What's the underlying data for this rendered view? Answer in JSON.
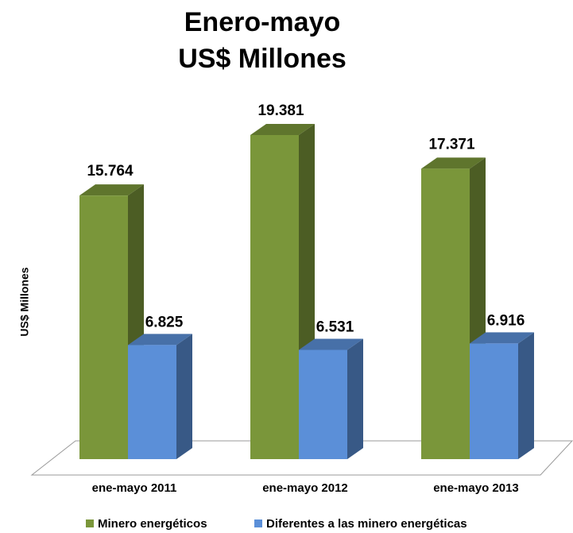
{
  "chart_data": {
    "type": "bar3d",
    "title": "Enero-mayo",
    "subtitle": "US$ Millones",
    "y_label": "US$ Millones",
    "categories": [
      "ene-mayo 2011",
      "ene-mayo 2012",
      "ene-mayo 2013"
    ],
    "series": [
      {
        "name": "Minero energéticos",
        "color": "#7a963a",
        "values": [
          15764,
          19381,
          17371
        ],
        "value_labels": [
          "15.764",
          "19.381",
          "17.371"
        ]
      },
      {
        "name": "Diferentes a las minero energéticas",
        "color": "#5b8fd8",
        "values": [
          6825,
          6531,
          6916
        ],
        "value_labels": [
          "6.825",
          "6.531",
          "6.916"
        ]
      }
    ],
    "legend": "bottom"
  }
}
